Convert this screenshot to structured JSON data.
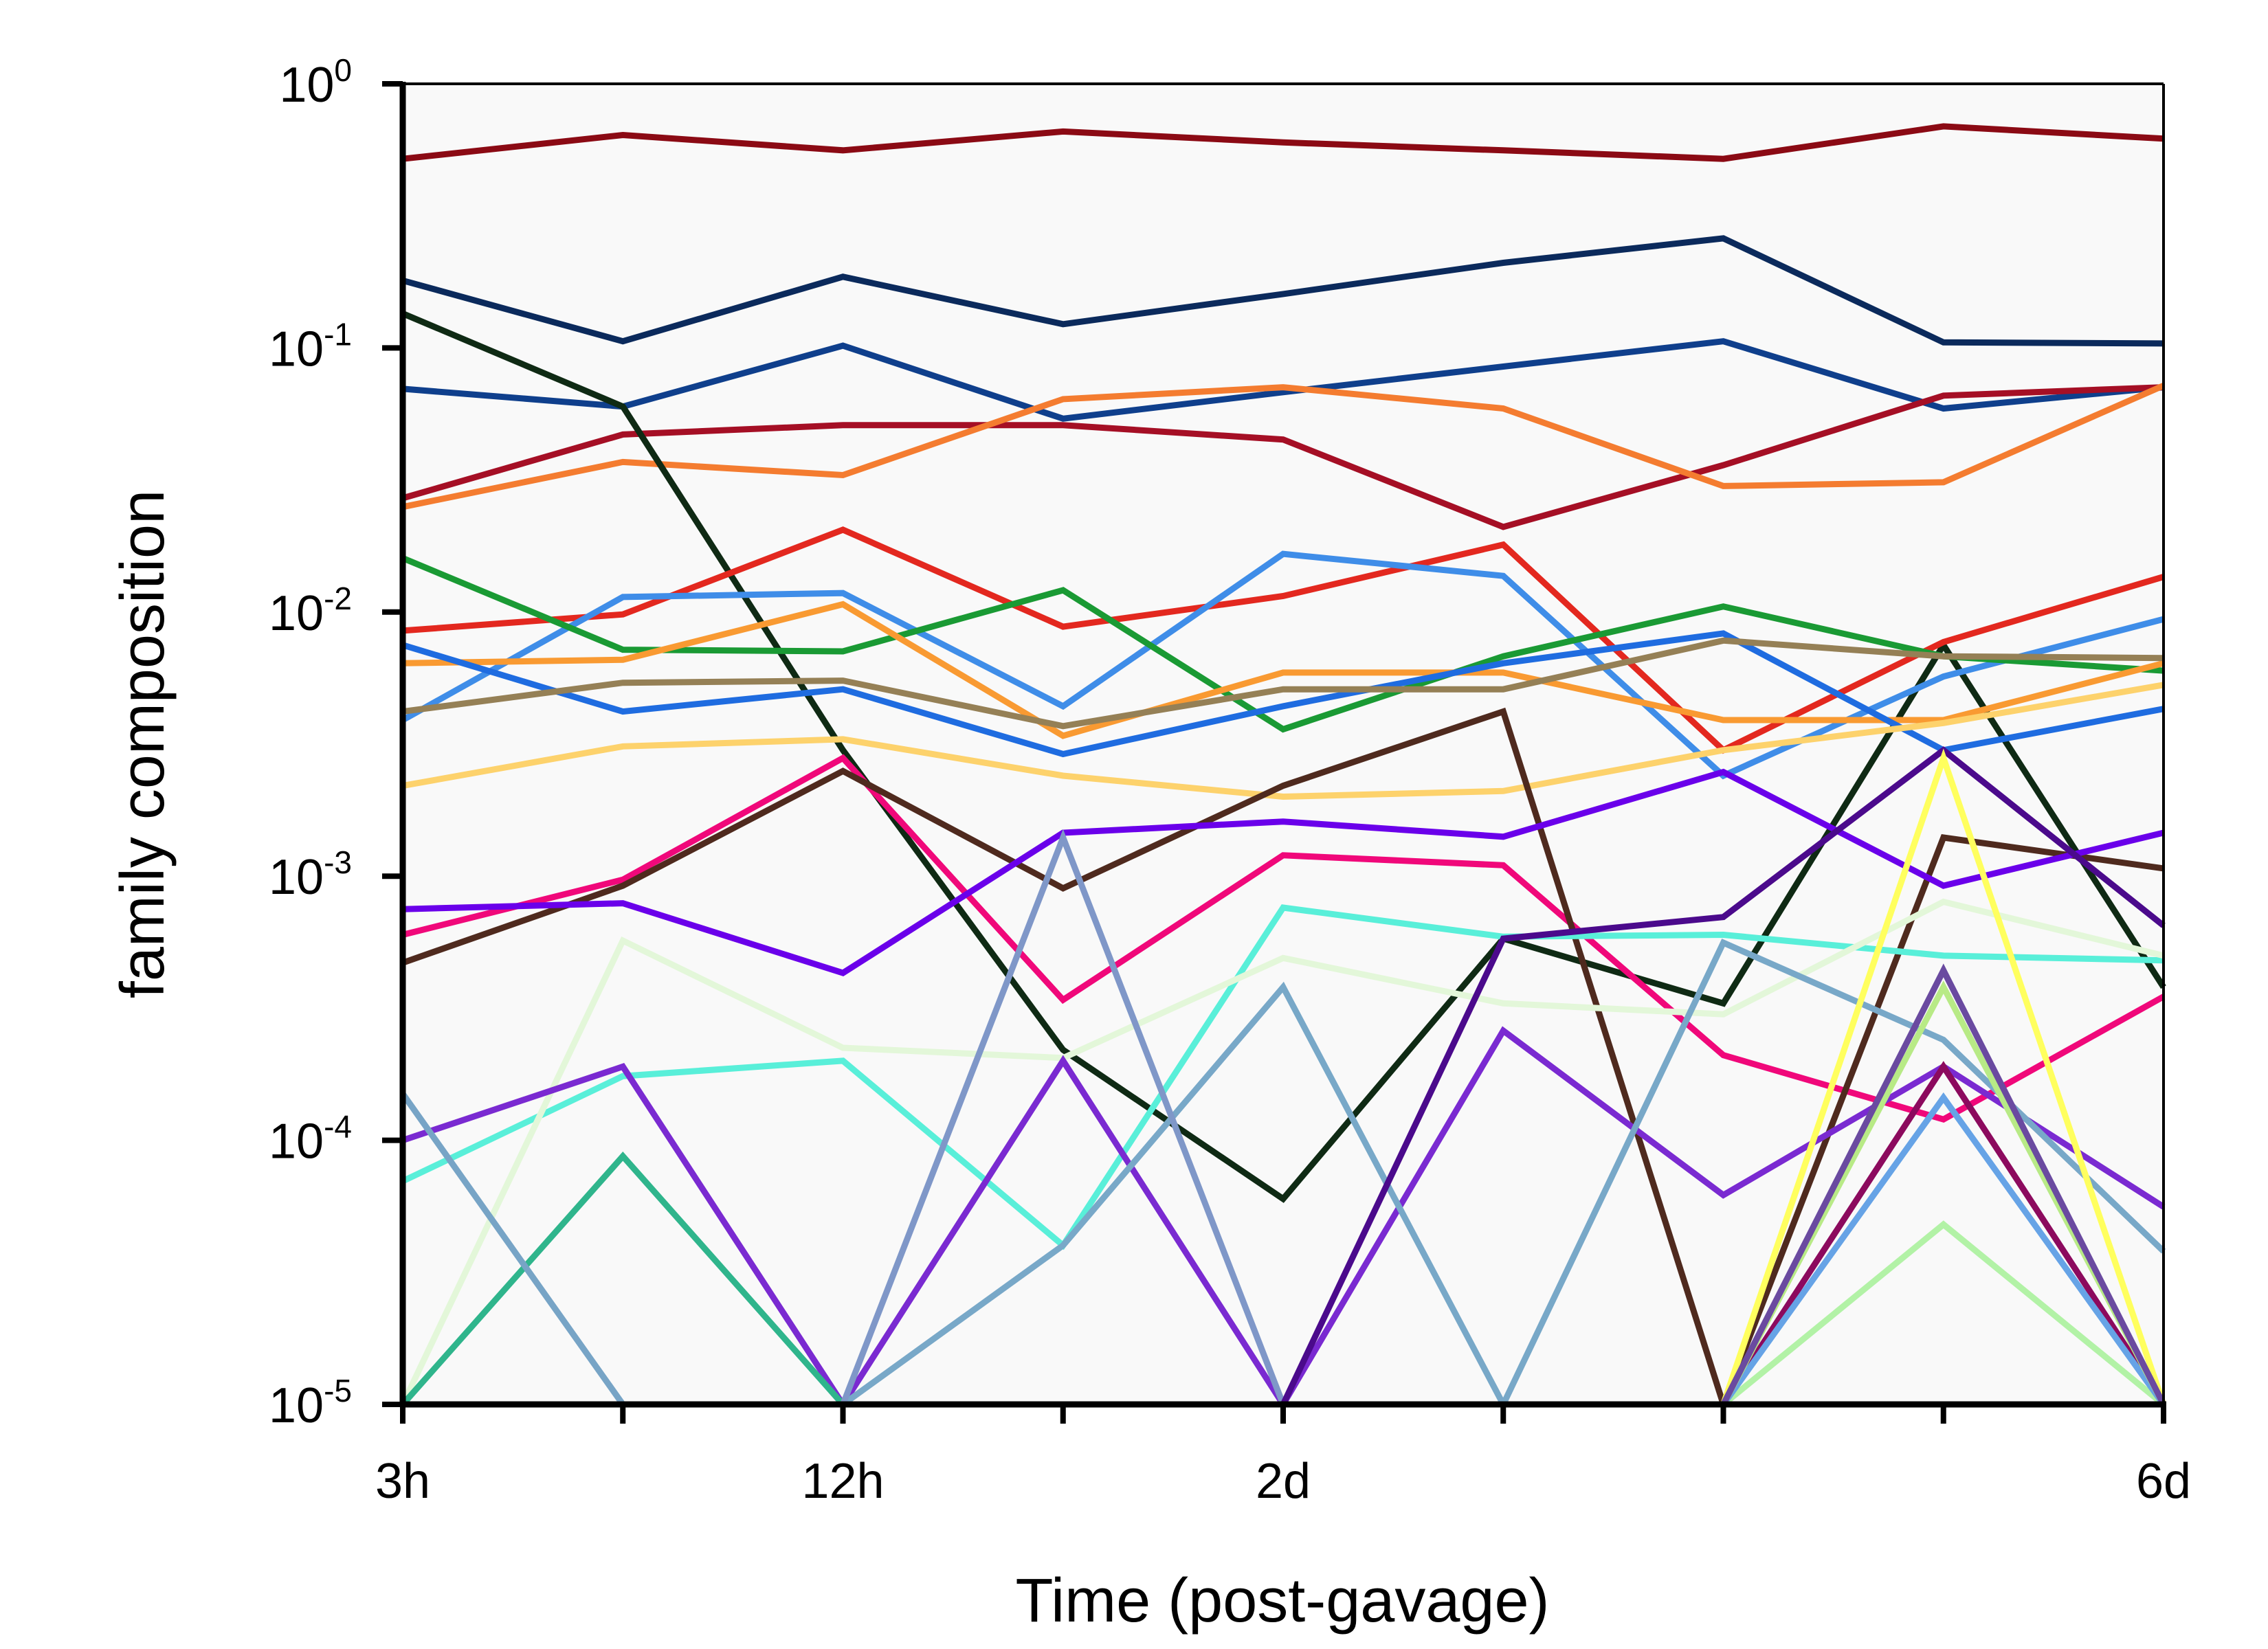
{
  "chart_data": {
    "type": "line",
    "xlabel": "Time (post-gavage)",
    "ylabel": "family composition",
    "yscale": "log",
    "ylim": [
      1e-05,
      1
    ],
    "x_ticks": [
      "3h",
      "",
      "12h",
      "",
      "2d",
      "",
      "",
      "",
      "6d"
    ],
    "y_ticks": [
      {
        "base": "10",
        "exp": "0"
      },
      {
        "base": "10",
        "exp": "-1"
      },
      {
        "base": "10",
        "exp": "-2"
      },
      {
        "base": "10",
        "exp": "-3"
      },
      {
        "base": "10",
        "exp": "-4"
      },
      {
        "base": "10",
        "exp": "-5"
      }
    ],
    "grid": false,
    "plot_background": "#f9f9f9",
    "series": [
      {
        "color": "#8b0a14",
        "values": [
          0.52,
          0.64,
          0.56,
          0.66,
          0.6,
          0.56,
          0.52,
          0.69,
          0.62
        ]
      },
      {
        "color": "#0b2a5c",
        "values": [
          0.18,
          0.106,
          0.186,
          0.123,
          0.16,
          0.21,
          0.26,
          0.105,
          0.104
        ]
      },
      {
        "color": "#0f3f8c",
        "values": [
          0.07,
          0.06,
          0.102,
          0.054,
          0.068,
          0.085,
          0.106,
          0.059,
          0.071
        ]
      },
      {
        "color": "#a50f25",
        "values": [
          0.027,
          0.047,
          0.051,
          0.051,
          0.045,
          0.021,
          0.036,
          0.066,
          0.071
        ]
      },
      {
        "color": "#f47c30",
        "values": [
          0.025,
          0.037,
          0.033,
          0.064,
          0.071,
          0.059,
          0.03,
          0.031,
          0.072
        ]
      },
      {
        "color": "#0f2a14",
        "values": [
          0.135,
          0.06,
          0.003,
          0.00022,
          6e-05,
          0.00058,
          0.00033,
          0.0075,
          0.00038
        ]
      },
      {
        "color": "#e3281f",
        "values": [
          0.0085,
          0.0098,
          0.0205,
          0.0088,
          0.0115,
          0.018,
          0.003,
          0.0077,
          0.0136
        ]
      },
      {
        "color": "#3f8de8",
        "values": [
          0.0039,
          0.0114,
          0.0118,
          0.0044,
          0.0166,
          0.0137,
          0.0024,
          0.0057,
          0.0094
        ]
      },
      {
        "color": "#1a9a34",
        "values": [
          0.016,
          0.0072,
          0.0071,
          0.0121,
          0.0036,
          0.0068,
          0.0105,
          0.0068,
          0.006
        ]
      },
      {
        "color": "#f99a32",
        "values": [
          0.0064,
          0.0066,
          0.0107,
          0.0034,
          0.0059,
          0.0059,
          0.0039,
          0.0039,
          0.0064
        ]
      },
      {
        "color": "#1f6ce0",
        "values": [
          0.0075,
          0.0042,
          0.0051,
          0.0029,
          0.0044,
          0.0064,
          0.0083,
          0.003,
          0.0043
        ]
      },
      {
        "color": "#958056",
        "values": [
          0.0042,
          0.0054,
          0.0055,
          0.0037,
          0.0051,
          0.0051,
          0.0078,
          0.0068,
          0.0067
        ]
      },
      {
        "color": "#fdd26c",
        "values": [
          0.0022,
          0.0031,
          0.0033,
          0.0024,
          0.002,
          0.0021,
          0.003,
          0.0038,
          0.0053
        ]
      },
      {
        "color": "#f0087a",
        "values": [
          0.0006,
          0.00097,
          0.0028,
          0.00034,
          0.0012,
          0.0011,
          0.00021,
          0.00012,
          0.00035
        ]
      },
      {
        "color": "#4f2a1e",
        "values": [
          0.00047,
          0.00092,
          0.0025,
          0.0009,
          0.0022,
          0.0042,
          1e-05,
          0.0014,
          0.00107
        ]
      },
      {
        "color": "#6a00ea",
        "values": [
          0.00075,
          0.00079,
          0.00043,
          0.00146,
          0.00161,
          0.00141,
          0.00248,
          0.00092,
          0.00146
        ]
      },
      {
        "color": "#59efd9",
        "values": [
          7e-05,
          0.000175,
          0.0002,
          4e-05,
          0.00076,
          0.00059,
          0.0006,
          0.0005,
          0.00048
        ]
      },
      {
        "color": "#e3f7d9",
        "values": [
          1e-05,
          0.00057,
          0.000224,
          0.000205,
          0.00049,
          0.00033,
          0.0003,
          0.0008,
          0.0005
        ]
      },
      {
        "color": "#7a2ad1",
        "values": [
          0.0001,
          0.00019,
          1e-05,
          0.0002,
          1e-05,
          0.00026,
          6.2e-05,
          0.00019,
          5.6e-05
        ]
      },
      {
        "color": "#2fb58c",
        "values": [
          1e-05,
          8.7e-05,
          1e-05,
          null,
          null,
          null,
          null,
          null,
          null
        ]
      },
      {
        "color": "#77a4c6",
        "values": [
          0.00015,
          1e-05,
          null,
          null,
          null,
          null,
          null,
          null,
          null
        ]
      },
      {
        "color": "#78a8c8",
        "values": [
          null,
          null,
          1e-05,
          4e-05,
          0.00038,
          1e-05,
          0.00056,
          0.00024,
          3.8e-05
        ]
      },
      {
        "color": "#7f97c8",
        "values": [
          null,
          null,
          1e-05,
          0.0014,
          1e-05,
          null,
          null,
          null,
          null
        ]
      },
      {
        "color": "#4b0a8c",
        "values": [
          null,
          null,
          null,
          null,
          1e-05,
          0.00058,
          0.0007,
          0.003,
          0.00065
        ]
      },
      {
        "color": "#ffff5e",
        "values": [
          null,
          null,
          null,
          null,
          null,
          null,
          1e-05,
          0.0028,
          1e-05
        ]
      },
      {
        "color": "#b2f2a6",
        "values": [
          null,
          null,
          null,
          null,
          null,
          null,
          1e-05,
          4.8e-05,
          1e-05
        ]
      },
      {
        "color": "#8c0a5e",
        "values": [
          null,
          null,
          null,
          null,
          null,
          null,
          1e-05,
          0.00019,
          1e-05
        ]
      },
      {
        "color": "#66a3e6",
        "values": [
          null,
          null,
          null,
          null,
          null,
          null,
          1e-05,
          0.000145,
          1e-05
        ]
      },
      {
        "color": "#b8ea86",
        "values": [
          null,
          null,
          null,
          null,
          null,
          null,
          1e-05,
          0.00038,
          1e-05
        ]
      },
      {
        "color": "#6a4aa0",
        "values": [
          null,
          null,
          null,
          null,
          null,
          null,
          1e-05,
          0.00044,
          1e-05
        ]
      }
    ]
  }
}
